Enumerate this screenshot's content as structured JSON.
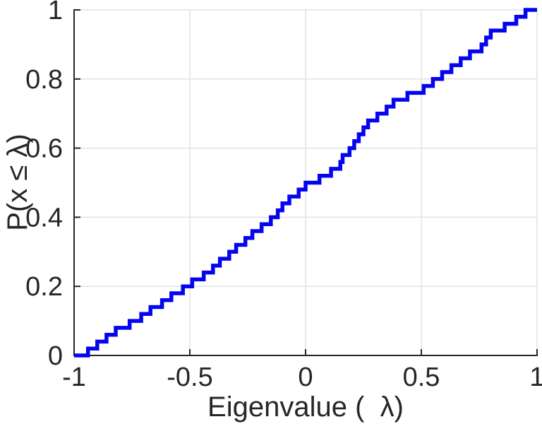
{
  "chart_data": {
    "type": "line",
    "subtype": "ecdf-step",
    "title": "",
    "xlabel": "Eigenvalue (  λ)",
    "ylabel": "P(x ≤ λ)",
    "xlim": [
      -1,
      1
    ],
    "ylim": [
      0,
      1
    ],
    "x_ticks": [
      -1,
      -0.5,
      0,
      0.5,
      1
    ],
    "x_tick_labels": [
      "-1",
      "-0.5",
      "0",
      "0.5",
      "1"
    ],
    "y_ticks": [
      0,
      0.2,
      0.4,
      0.6,
      0.8,
      1
    ],
    "y_tick_labels": [
      "0",
      "0.2",
      "0.4",
      "0.6",
      "0.8",
      "1"
    ],
    "grid": true,
    "legend_position": "none",
    "n_samples": 50,
    "step_increment": 0.02,
    "eigenvalues_sorted": [
      -0.94,
      -0.9,
      -0.86,
      -0.82,
      -0.76,
      -0.71,
      -0.67,
      -0.62,
      -0.58,
      -0.53,
      -0.49,
      -0.44,
      -0.4,
      -0.37,
      -0.33,
      -0.3,
      -0.26,
      -0.23,
      -0.19,
      -0.15,
      -0.12,
      -0.1,
      -0.07,
      -0.03,
      0.0,
      0.06,
      0.11,
      0.15,
      0.16,
      0.19,
      0.21,
      0.23,
      0.25,
      0.27,
      0.31,
      0.35,
      0.38,
      0.44,
      0.51,
      0.55,
      0.59,
      0.63,
      0.67,
      0.71,
      0.76,
      0.78,
      0.8,
      0.86,
      0.91,
      0.95
    ],
    "cdf_start": 0,
    "cdf_end": 1,
    "line_color": "#0404f0",
    "axis_color": "#262626",
    "grid_color": "#e2e2e2",
    "tick_label_color": "#262626",
    "background_color": "#ffffff"
  }
}
